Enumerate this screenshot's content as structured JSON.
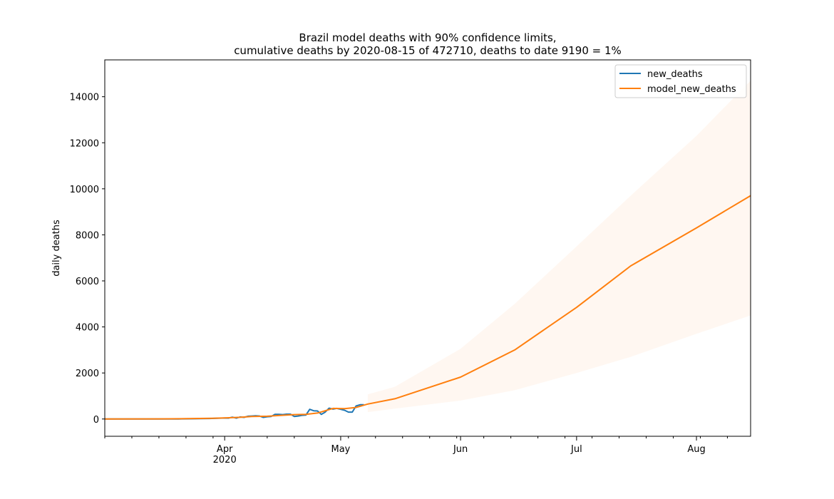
{
  "chart_data": {
    "type": "line",
    "title_line1": "Brazil model deaths with 90% confidence limits,",
    "title_line2": "cumulative deaths by 2020-08-15 of 472710, deaths to date 9190 = 1%",
    "xlabel": "",
    "ylabel": "daily deaths",
    "xlim": [
      "2020-03-01",
      "2020-08-15"
    ],
    "ylim": [
      -750,
      15600
    ],
    "y_ticks": [
      0,
      2000,
      4000,
      6000,
      8000,
      10000,
      12000,
      14000
    ],
    "x_major_ticks": [
      {
        "date": "2020-04-01",
        "label": "Apr",
        "sub": "2020"
      },
      {
        "date": "2020-05-01",
        "label": "May",
        "sub": ""
      },
      {
        "date": "2020-06-01",
        "label": "Jun",
        "sub": ""
      },
      {
        "date": "2020-07-01",
        "label": "Jul",
        "sub": ""
      },
      {
        "date": "2020-08-01",
        "label": "Aug",
        "sub": ""
      }
    ],
    "grid": false,
    "legend_position": "upper-right",
    "series": [
      {
        "name": "new_deaths",
        "color": "#1f77b4",
        "points": [
          [
            "2020-03-01",
            0
          ],
          [
            "2020-03-10",
            0
          ],
          [
            "2020-03-17",
            1
          ],
          [
            "2020-03-20",
            4
          ],
          [
            "2020-03-23",
            9
          ],
          [
            "2020-03-26",
            18
          ],
          [
            "2020-03-28",
            22
          ],
          [
            "2020-03-30",
            30
          ],
          [
            "2020-04-01",
            42
          ],
          [
            "2020-04-02",
            40
          ],
          [
            "2020-04-03",
            80
          ],
          [
            "2020-04-04",
            40
          ],
          [
            "2020-04-05",
            90
          ],
          [
            "2020-04-06",
            70
          ],
          [
            "2020-04-07",
            120
          ],
          [
            "2020-04-08",
            130
          ],
          [
            "2020-04-09",
            140
          ],
          [
            "2020-04-10",
            130
          ],
          [
            "2020-04-11",
            70
          ],
          [
            "2020-04-12",
            100
          ],
          [
            "2020-04-13",
            110
          ],
          [
            "2020-04-14",
            200
          ],
          [
            "2020-04-15",
            205
          ],
          [
            "2020-04-16",
            190
          ],
          [
            "2020-04-17",
            210
          ],
          [
            "2020-04-18",
            210
          ],
          [
            "2020-04-19",
            110
          ],
          [
            "2020-04-20",
            130
          ],
          [
            "2020-04-21",
            160
          ],
          [
            "2020-04-22",
            170
          ],
          [
            "2020-04-23",
            420
          ],
          [
            "2020-04-24",
            360
          ],
          [
            "2020-04-25",
            350
          ],
          [
            "2020-04-26",
            200
          ],
          [
            "2020-04-27",
            300
          ],
          [
            "2020-04-28",
            470
          ],
          [
            "2020-04-29",
            430
          ],
          [
            "2020-04-30",
            460
          ],
          [
            "2020-05-01",
            420
          ],
          [
            "2020-05-02",
            380
          ],
          [
            "2020-05-03",
            300
          ],
          [
            "2020-05-04",
            300
          ],
          [
            "2020-05-05",
            570
          ],
          [
            "2020-05-06",
            620
          ],
          [
            "2020-05-07",
            620
          ]
        ]
      },
      {
        "name": "model_new_deaths",
        "color": "#ff7f0e",
        "points": [
          [
            "2020-03-01",
            0
          ],
          [
            "2020-03-15",
            5
          ],
          [
            "2020-03-22",
            15
          ],
          [
            "2020-03-29",
            30
          ],
          [
            "2020-04-01",
            45
          ],
          [
            "2020-04-05",
            75
          ],
          [
            "2020-04-08",
            110
          ],
          [
            "2020-04-12",
            120
          ],
          [
            "2020-04-15",
            150
          ],
          [
            "2020-04-19",
            190
          ],
          [
            "2020-04-22",
            200
          ],
          [
            "2020-04-25",
            260
          ],
          [
            "2020-04-29",
            460
          ],
          [
            "2020-05-02",
            450
          ],
          [
            "2020-05-05",
            500
          ],
          [
            "2020-05-08",
            650
          ],
          [
            "2020-05-15",
            880
          ],
          [
            "2020-06-01",
            1820
          ],
          [
            "2020-06-15",
            3000
          ],
          [
            "2020-07-01",
            4850
          ],
          [
            "2020-07-15",
            6650
          ],
          [
            "2020-08-01",
            8300
          ],
          [
            "2020-08-15",
            9700
          ]
        ]
      }
    ],
    "confidence_band": {
      "color": "#ff7f0e",
      "opacity": 0.06,
      "points": [
        [
          "2020-05-08",
          300,
          1070
        ],
        [
          "2020-05-15",
          450,
          1400
        ],
        [
          "2020-06-01",
          800,
          3050
        ],
        [
          "2020-06-15",
          1250,
          5000
        ],
        [
          "2020-07-01",
          2000,
          7500
        ],
        [
          "2020-07-15",
          2700,
          9700
        ],
        [
          "2020-08-01",
          3700,
          12300
        ],
        [
          "2020-08-15",
          4500,
          14700
        ]
      ]
    }
  }
}
